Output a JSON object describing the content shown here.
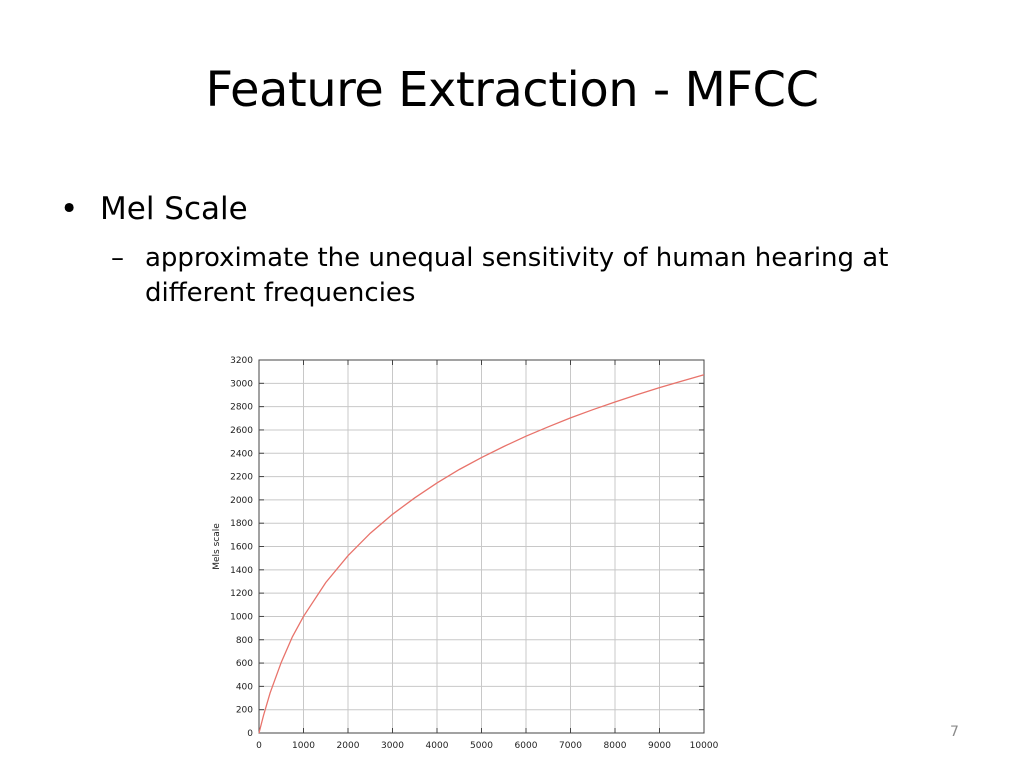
{
  "slide": {
    "title": "Feature Extraction - MFCC",
    "bullets": [
      {
        "text": "Mel Scale",
        "sub": [
          {
            "text": " approximate the unequal sensitivity of human hearing at different frequencies"
          }
        ]
      }
    ],
    "bullet_glyph": "•",
    "sub_glyph": "–",
    "page_number": "7"
  },
  "chart_data": {
    "type": "line",
    "title": "",
    "xlabel": "",
    "ylabel": "Mels scale",
    "xlim": [
      0,
      10000
    ],
    "ylim": [
      0,
      3200
    ],
    "x_ticks": [
      0,
      1000,
      2000,
      3000,
      4000,
      5000,
      6000,
      7000,
      8000,
      9000,
      10000
    ],
    "y_ticks": [
      0,
      200,
      400,
      600,
      800,
      1000,
      1200,
      1400,
      1600,
      1800,
      2000,
      2200,
      2400,
      2600,
      2800,
      3000,
      3200
    ],
    "grid": true,
    "series": [
      {
        "color": "#e8736b",
        "x": [
          0,
          100,
          250,
          500,
          750,
          1000,
          1500,
          2000,
          2500,
          3000,
          3500,
          4000,
          4500,
          5000,
          5500,
          6000,
          6500,
          7000,
          7500,
          8000,
          8500,
          9000,
          9500,
          10000
        ],
        "y": [
          0,
          150,
          344,
          607,
          825,
          1000,
          1291,
          1521,
          1714,
          1876,
          2018,
          2146,
          2261,
          2363,
          2458,
          2546,
          2627,
          2703,
          2774,
          2840,
          2903,
          2963,
          3019,
          3073
        ]
      }
    ]
  }
}
